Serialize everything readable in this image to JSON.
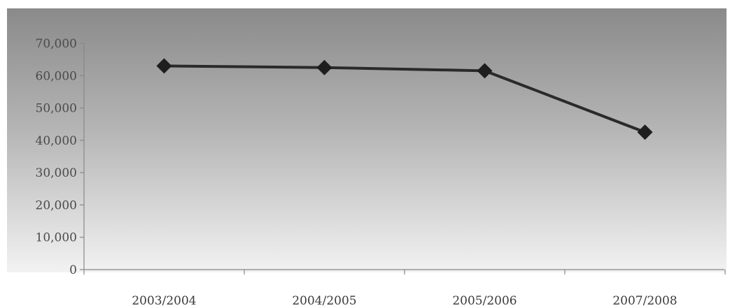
{
  "chart_data": {
    "type": "line",
    "categories": [
      "2003/2004",
      "2004/2005",
      "2005/2006",
      "2007/2008"
    ],
    "series": [
      {
        "values": [
          63000,
          62500,
          61500,
          42500
        ]
      }
    ],
    "yticks": [
      "0",
      "10,000",
      "20,000",
      "30,000",
      "40,000",
      "50,000",
      "60,000",
      "70,000"
    ],
    "ylim": [
      0,
      70000
    ],
    "grid": false,
    "legend": "none",
    "title": "",
    "xlabel": "",
    "ylabel": "",
    "colors": {
      "line": "#2a2a2a",
      "marker": "#1e1e1e",
      "plot_top": "#8a8a8a",
      "plot_bottom": "#f2f2f2",
      "axis": "#888888"
    }
  }
}
